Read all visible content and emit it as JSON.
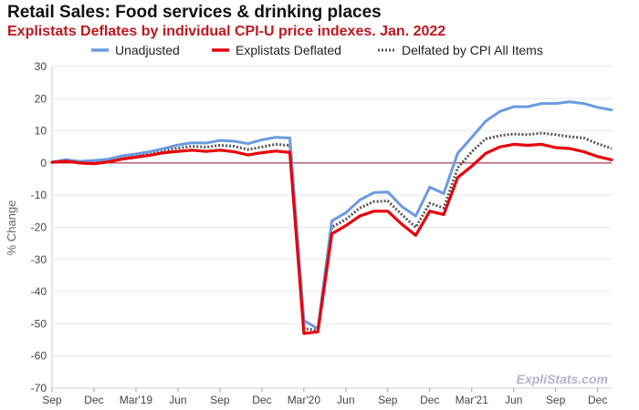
{
  "title": "Retail Sales: Food services & drinking places",
  "subtitle": "Explistats Deflates by individual CPI-U price indexes. Jan. 2022",
  "watermark": "ExpliStats.com",
  "chart_data": {
    "type": "line",
    "ylabel": "% Change",
    "xlabel": "",
    "ylim": [
      -70,
      30
    ],
    "yticks": [
      30,
      20,
      10,
      0,
      -10,
      -20,
      -30,
      -40,
      -50,
      -60,
      -70
    ],
    "grid": true,
    "legend_position": "top",
    "x": [
      "Sep 2018",
      "Oct 2018",
      "Nov 2018",
      "Dec 2018",
      "Jan 2019",
      "Feb 2019",
      "Mar 2019",
      "Apr 2019",
      "May 2019",
      "Jun 2019",
      "Jul 2019",
      "Aug 2019",
      "Sep 2019",
      "Oct 2019",
      "Nov 2019",
      "Dec 2019",
      "Jan 2020",
      "Feb 2020",
      "Mar 2020",
      "Apr 2020",
      "May 2020",
      "Jun 2020",
      "Jul 2020",
      "Aug 2020",
      "Sep 2020",
      "Oct 2020",
      "Nov 2020",
      "Dec 2020",
      "Jan 2021",
      "Feb 2021",
      "Mar 2021",
      "Apr 2021",
      "May 2021",
      "Jun 2021",
      "Jul 2021",
      "Aug 2021",
      "Sep 2021",
      "Oct 2021",
      "Nov 2021",
      "Dec 2021",
      "Jan 2022"
    ],
    "x_tick_labels": [
      {
        "index": 0,
        "label": "Sep"
      },
      {
        "index": 3,
        "label": "Dec"
      },
      {
        "index": 6,
        "label": "Mar'19"
      },
      {
        "index": 9,
        "label": "Jun"
      },
      {
        "index": 12,
        "label": "Sep"
      },
      {
        "index": 15,
        "label": "Dec"
      },
      {
        "index": 18,
        "label": "Mar'20"
      },
      {
        "index": 21,
        "label": "Jun"
      },
      {
        "index": 24,
        "label": "Sep"
      },
      {
        "index": 27,
        "label": "Dec"
      },
      {
        "index": 30,
        "label": "Mar'21"
      },
      {
        "index": 33,
        "label": "Jun"
      },
      {
        "index": 36,
        "label": "Sep"
      },
      {
        "index": 39,
        "label": "Dec"
      }
    ],
    "zero_line_color": "#8b1a2b",
    "series": [
      {
        "name": "Unadjusted",
        "color": "#6b9ae0",
        "style": "solid",
        "values": [
          0.3,
          1.0,
          0.5,
          0.8,
          1.2,
          2.2,
          2.8,
          3.5,
          4.5,
          5.6,
          6.3,
          6.2,
          7.0,
          6.8,
          6.0,
          7.2,
          8.0,
          7.8,
          -49.0,
          -51.5,
          -18.0,
          -15.5,
          -11.5,
          -9.2,
          -9.0,
          -13.5,
          -16.5,
          -7.5,
          -9.5,
          3.0,
          8.0,
          13.0,
          16.0,
          17.5,
          17.5,
          18.5,
          18.5,
          19.0,
          18.5,
          17.3,
          16.5
        ]
      },
      {
        "name": "Explistats Deflated",
        "color": "#e8000b",
        "style": "solid",
        "values": [
          0.2,
          0.6,
          0.0,
          -0.2,
          0.3,
          1.2,
          1.8,
          2.4,
          3.2,
          3.6,
          4.0,
          3.6,
          4.0,
          3.5,
          2.5,
          3.2,
          3.7,
          3.3,
          -53.0,
          -52.5,
          -22.0,
          -19.5,
          -16.5,
          -15.0,
          -15.0,
          -19.0,
          -22.5,
          -15.0,
          -16.0,
          -4.5,
          -1.0,
          3.0,
          5.0,
          5.8,
          5.5,
          5.8,
          4.8,
          4.5,
          3.5,
          2.0,
          1.0
        ]
      },
      {
        "name": "Delfated by CPI All Items",
        "color": "#555555",
        "style": "dotted",
        "values": [
          0.2,
          0.8,
          0.3,
          0.4,
          0.8,
          1.8,
          2.3,
          3.0,
          3.9,
          4.6,
          5.2,
          4.9,
          5.5,
          5.2,
          4.2,
          5.0,
          5.8,
          5.5,
          -51.5,
          -52.0,
          -20.0,
          -17.5,
          -14.0,
          -12.0,
          -11.8,
          -16.0,
          -20.0,
          -12.5,
          -14.0,
          -1.5,
          3.5,
          7.5,
          8.5,
          9.0,
          8.8,
          9.3,
          8.8,
          8.2,
          7.8,
          6.0,
          4.5
        ]
      }
    ]
  }
}
